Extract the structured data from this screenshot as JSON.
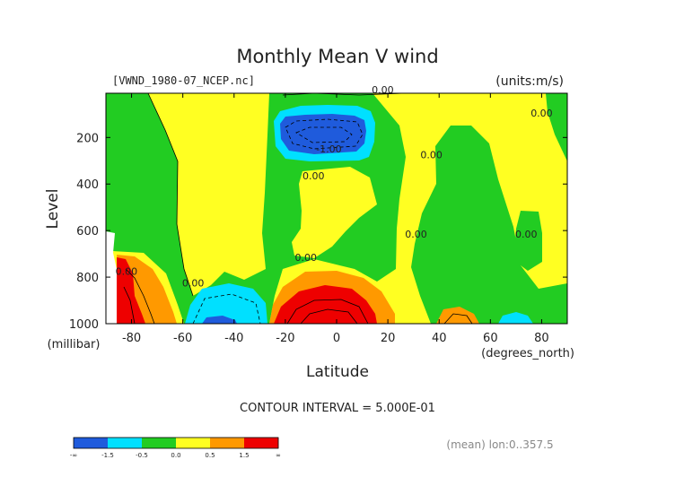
{
  "chart_data": {
    "type": "contour",
    "title": "Monthly Mean V wind",
    "source_label": "[VWND_1980-07_NCEP.nc]",
    "units_label": "(units:m/s)",
    "xlabel": "Latitude",
    "x_units": "(degrees_north)",
    "ylabel": "Level",
    "y_units": "(millibar)",
    "xlim": [
      -90,
      90
    ],
    "ylim": [
      1000,
      10
    ],
    "x_ticks": [
      -80,
      -60,
      -40,
      -20,
      0,
      20,
      40,
      60,
      80
    ],
    "y_ticks": [
      200,
      400,
      600,
      800,
      1000
    ],
    "contour_interval_text": "CONTOUR INTERVAL = 5.000E-01",
    "footer_text": "(mean) lon:0..357.5",
    "contour_labels": [
      {
        "text": "0.00",
        "lat": 18,
        "level": 10
      },
      {
        "text": "0.00",
        "lat": 80,
        "level": 110
      },
      {
        "text": "0.00",
        "lat": 37,
        "level": 290
      },
      {
        "text": "-1.00",
        "lat": -3,
        "level": 265
      },
      {
        "text": "0.00",
        "lat": -9,
        "level": 380
      },
      {
        "text": "0.00",
        "lat": 31,
        "level": 630
      },
      {
        "text": "0.00",
        "lat": 74,
        "level": 630
      },
      {
        "text": "0.00",
        "lat": -12,
        "level": 730
      },
      {
        "text": "0.00",
        "lat": -56,
        "level": 840
      },
      {
        "text": "0.00",
        "lat": -82,
        "level": 790
      }
    ],
    "colorbar": {
      "levels": [
        "-∞",
        "-1.5",
        "-0.5",
        "0.0",
        "0.5",
        "1.5",
        "∞"
      ],
      "colors": [
        "#1f5bdc",
        "#1f5bdc",
        "#00e0ff",
        "#00e0ff",
        "#22cc22",
        "#22cc22",
        "#ffff22",
        "#ffff22",
        "#ff9900",
        "#ff9900",
        "#ee0000",
        "#ee0000"
      ]
    },
    "region_colors": {
      "negative_strong": "#1f5bdc",
      "negative_weak": "#00e0ff",
      "near_zero_negative": "#22cc22",
      "near_zero_positive": "#ffff22",
      "positive_mid": "#ff9900",
      "positive_strong": "#ee0000"
    }
  }
}
